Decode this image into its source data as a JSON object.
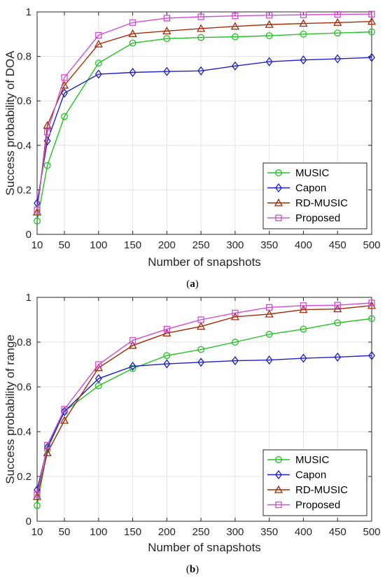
{
  "chart_data": [
    {
      "type": "line",
      "panel_label": "a",
      "caption_open": "(",
      "caption_close": ")",
      "xlabel": "Number of snapshots",
      "ylabel": "Success probability of DOA",
      "x": [
        10,
        25,
        50,
        100,
        150,
        200,
        250,
        300,
        350,
        400,
        450,
        500
      ],
      "xticks": [
        10,
        50,
        100,
        150,
        200,
        250,
        300,
        350,
        400,
        450,
        500
      ],
      "xtick_labels": [
        "10",
        "50",
        "100",
        "150",
        "200",
        "250",
        "300",
        "350",
        "400",
        "450",
        "500"
      ],
      "yticks": [
        0,
        0.2,
        0.4,
        0.6,
        0.8,
        1
      ],
      "ytick_labels": [
        "0",
        "0.2",
        "0.4",
        "0.6",
        "0.8",
        "1"
      ],
      "xlim": [
        10,
        500
      ],
      "ylim": [
        0,
        1
      ],
      "grid": true,
      "legend_position": "bottom-right",
      "series": [
        {
          "name": "MUSIC",
          "color": "#22c322",
          "marker": "circle",
          "values": [
            0.06,
            0.31,
            0.53,
            0.77,
            0.86,
            0.88,
            0.885,
            0.888,
            0.893,
            0.9,
            0.905,
            0.91
          ]
        },
        {
          "name": "Capon",
          "color": "#1f1fc8",
          "marker": "diamond",
          "values": [
            0.14,
            0.42,
            0.635,
            0.72,
            0.728,
            0.732,
            0.735,
            0.757,
            0.776,
            0.784,
            0.789,
            0.795
          ]
        },
        {
          "name": "RD-MUSIC",
          "color": "#a52a0a",
          "marker": "triangle",
          "values": [
            0.1,
            0.49,
            0.67,
            0.855,
            0.902,
            0.914,
            0.925,
            0.935,
            0.943,
            0.948,
            0.952,
            0.957
          ]
        },
        {
          "name": "Proposed",
          "color": "#d34bd3",
          "marker": "square",
          "values": [
            0.11,
            0.46,
            0.705,
            0.895,
            0.952,
            0.972,
            0.978,
            0.982,
            0.985,
            0.987,
            0.989,
            0.99
          ]
        }
      ]
    },
    {
      "type": "line",
      "panel_label": "b",
      "caption_open": "(",
      "caption_close": ")",
      "xlabel": "Number of snapshots",
      "ylabel": "Success probability of range",
      "x": [
        10,
        25,
        50,
        100,
        150,
        200,
        250,
        300,
        350,
        400,
        450,
        500
      ],
      "xticks": [
        10,
        50,
        100,
        150,
        200,
        250,
        300,
        350,
        400,
        450,
        500
      ],
      "xtick_labels": [
        "10",
        "50",
        "100",
        "150",
        "200",
        "250",
        "300",
        "350",
        "400",
        "450",
        "500"
      ],
      "yticks": [
        0,
        0.2,
        0.4,
        0.6,
        0.8,
        1
      ],
      "ytick_labels": [
        "0",
        "0.2",
        "0.4",
        "0.6",
        "0.8",
        "1"
      ],
      "xlim": [
        10,
        500
      ],
      "ylim": [
        0,
        1
      ],
      "grid": true,
      "legend_position": "bottom-right",
      "series": [
        {
          "name": "MUSIC",
          "color": "#22c322",
          "marker": "circle",
          "values": [
            0.07,
            0.32,
            0.49,
            0.605,
            0.682,
            0.74,
            0.767,
            0.8,
            0.835,
            0.858,
            0.886,
            0.905
          ]
        },
        {
          "name": "Capon",
          "color": "#1f1fc8",
          "marker": "diamond",
          "values": [
            0.14,
            0.33,
            0.49,
            0.637,
            0.692,
            0.703,
            0.71,
            0.717,
            0.72,
            0.728,
            0.733,
            0.74
          ]
        },
        {
          "name": "RD-MUSIC",
          "color": "#a52a0a",
          "marker": "triangle",
          "values": [
            0.11,
            0.305,
            0.45,
            0.685,
            0.785,
            0.84,
            0.87,
            0.913,
            0.925,
            0.945,
            0.948,
            0.963
          ]
        },
        {
          "name": "Proposed",
          "color": "#d34bd3",
          "marker": "square",
          "values": [
            0.12,
            0.34,
            0.5,
            0.7,
            0.808,
            0.858,
            0.9,
            0.93,
            0.955,
            0.963,
            0.965,
            0.975
          ]
        }
      ]
    }
  ]
}
